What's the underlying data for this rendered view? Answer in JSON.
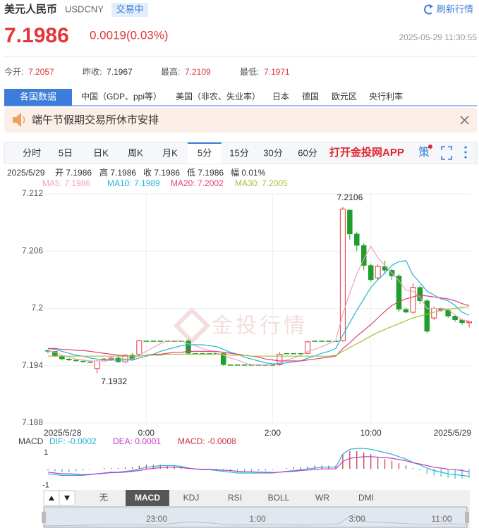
{
  "header": {
    "name": "美元人民币",
    "code": "USDCNY",
    "status": "交易中",
    "refresh": "刷新行情",
    "price": "7.1986",
    "change": "0.0019(0.03%)",
    "time": "2025-05-29 11:30:55"
  },
  "stats": [
    {
      "label": "今开:",
      "value": "7.2057"
    },
    {
      "label": "昨收:",
      "value": "7.1967"
    },
    {
      "label": "最高:",
      "value": "7.2109"
    },
    {
      "label": "最低:",
      "value": "7.1971"
    }
  ],
  "tabs": [
    "各国数据",
    "中国（GDP、ppi等）",
    "美国（非农、失业率）",
    "日本",
    "德国",
    "欧元区",
    "央行利率"
  ],
  "notice": "端午节假期交易所休市安排",
  "periods": [
    "分时",
    "5日",
    "日K",
    "周K",
    "月K",
    "5分",
    "15分",
    "30分",
    "60分"
  ],
  "app_link": "打开金投网APP",
  "strategy": "策",
  "info": [
    "2025/5/29",
    "开 7.1986",
    "高 7.1986",
    "收 7.1986",
    "低 7.1986",
    "幅 0.01%"
  ],
  "watermark": "金投行情",
  "chart_data": [
    {
      "type": "candlestick",
      "up_color": "#e2363a",
      "down_color": "#1e9e2a",
      "ylim": [
        7.188,
        7.212
      ],
      "yticks": [
        7.212,
        7.206,
        7.2,
        7.194,
        7.188
      ],
      "high_label": "7.2106",
      "low_label": "7.1932",
      "categories": [
        "2025/5/28",
        null,
        null,
        null,
        null,
        null,
        null,
        null,
        null,
        null,
        null,
        null,
        null,
        null,
        "0:00",
        null,
        null,
        null,
        null,
        null,
        null,
        null,
        null,
        null,
        null,
        null,
        null,
        null,
        null,
        null,
        null,
        null,
        "2:00",
        null,
        null,
        null,
        null,
        null,
        null,
        null,
        null,
        null,
        null,
        null,
        null,
        null,
        "10:00",
        null,
        null,
        null,
        null,
        null,
        null,
        null,
        null,
        null,
        null,
        null,
        null,
        null,
        "2025/5/29"
      ],
      "open": [
        7.1956,
        7.1955,
        7.195,
        7.1947,
        7.1946,
        7.1945,
        7.1944,
        7.1937,
        7.1945,
        7.1947,
        7.1948,
        7.1944,
        7.1951,
        7.1952,
        7.1966,
        7.1966,
        7.1966,
        7.1966,
        7.1966,
        7.1966,
        7.1966,
        7.1953,
        7.1953,
        7.1953,
        7.1953,
        7.1953,
        7.1941,
        7.1941,
        7.1941,
        7.1941,
        7.1941,
        7.1941,
        7.1941,
        7.1941,
        7.1953,
        7.1953,
        7.1953,
        7.1953,
        7.1966,
        7.1966,
        7.1966,
        7.1966,
        7.1966,
        7.2103,
        7.2078,
        7.2066,
        7.2045,
        7.2032,
        7.2044,
        7.204,
        7.2034,
        7.1999,
        7.1996,
        7.2022,
        7.2008,
        7.199,
        7.2,
        7.1998,
        7.1992,
        7.1988,
        7.1985
      ],
      "high": [
        7.1957,
        7.1955,
        7.1951,
        7.1948,
        7.1946,
        7.1945,
        7.1945,
        7.1946,
        7.1948,
        7.1949,
        7.195,
        7.1952,
        7.1953,
        7.1967,
        7.1966,
        7.1966,
        7.1966,
        7.1966,
        7.1966,
        7.1966,
        7.1968,
        7.1953,
        7.1953,
        7.1953,
        7.1953,
        7.1954,
        7.1941,
        7.1941,
        7.1941,
        7.1941,
        7.1941,
        7.1941,
        7.1942,
        7.1954,
        7.1953,
        7.1953,
        7.1953,
        7.1966,
        7.1966,
        7.1966,
        7.1966,
        7.1966,
        7.2106,
        7.2104,
        7.208,
        7.2068,
        7.2047,
        7.2046,
        7.205,
        7.2042,
        7.2036,
        7.2001,
        7.2026,
        7.2024,
        7.201,
        7.2002,
        7.2001,
        7.2,
        7.1993,
        7.1989,
        7.1986
      ],
      "low": [
        7.1953,
        7.1949,
        7.1946,
        7.1945,
        7.1944,
        7.1943,
        7.1943,
        7.1932,
        7.1944,
        7.1945,
        7.1943,
        7.1943,
        7.1945,
        7.195,
        7.1966,
        7.1966,
        7.1966,
        7.1966,
        7.1966,
        7.1966,
        7.1952,
        7.1953,
        7.1953,
        7.1953,
        7.1953,
        7.194,
        7.1941,
        7.1941,
        7.1941,
        7.1941,
        7.1941,
        7.1941,
        7.194,
        7.194,
        7.1953,
        7.1953,
        7.1953,
        7.1952,
        7.1966,
        7.1966,
        7.1966,
        7.1966,
        7.1965,
        7.2072,
        7.206,
        7.204,
        7.2028,
        7.203,
        7.2036,
        7.203,
        7.1996,
        7.1995,
        7.1994,
        7.2005,
        7.1974,
        7.1988,
        7.1996,
        7.199,
        7.1986,
        7.1983,
        7.198
      ],
      "close": [
        7.1955,
        7.195,
        7.1947,
        7.1946,
        7.1945,
        7.1944,
        7.1944,
        7.1945,
        7.1947,
        7.1948,
        7.1944,
        7.1951,
        7.1946,
        7.1966,
        7.1966,
        7.1966,
        7.1966,
        7.1966,
        7.1966,
        7.1966,
        7.1953,
        7.1953,
        7.1953,
        7.1953,
        7.1953,
        7.1941,
        7.1941,
        7.1941,
        7.1941,
        7.1941,
        7.1941,
        7.1941,
        7.1941,
        7.1952,
        7.1953,
        7.1953,
        7.1953,
        7.1965,
        7.1966,
        7.1966,
        7.1966,
        7.1966,
        7.2104,
        7.2078,
        7.2066,
        7.2045,
        7.203,
        7.2044,
        7.204,
        7.2034,
        7.1999,
        7.1996,
        7.2022,
        7.2008,
        7.1976,
        7.2,
        7.1998,
        7.1992,
        7.1988,
        7.1985,
        7.1986
      ],
      "series": [
        {
          "name": "MA5: 7.1986",
          "color": "#f2a2bb",
          "values": [
            7.1956,
            7.1954,
            7.1951,
            7.1949,
            7.1947,
            7.1946,
            7.1945,
            7.1945,
            7.1945,
            7.1946,
            7.1946,
            7.1947,
            7.1947,
            7.1951,
            7.1955,
            7.1959,
            7.1963,
            7.1966,
            7.1966,
            7.1966,
            7.1963,
            7.1961,
            7.1958,
            7.1956,
            7.1953,
            7.1951,
            7.1948,
            7.1946,
            7.1943,
            7.1941,
            7.1941,
            7.1941,
            7.1941,
            7.1943,
            7.1946,
            7.1948,
            7.1951,
            7.1955,
            7.1957,
            7.196,
            7.1963,
            7.1966,
            7.1994,
            7.2016,
            7.2036,
            7.2052,
            7.2065,
            7.2053,
            7.2045,
            7.2037,
            7.2029,
            7.2019,
            7.2018,
            7.2012,
            7.2,
            7.2,
            7.2,
            7.1999,
            7.1993,
            7.1988,
            7.1987
          ]
        },
        {
          "name": "MA10: 7.1989",
          "color": "#25b3d6",
          "values": [
            7.1958,
            7.1957,
            7.1955,
            7.1953,
            7.1951,
            7.195,
            7.1948,
            7.1947,
            7.1946,
            7.1946,
            7.1946,
            7.1946,
            7.1946,
            7.1948,
            7.195,
            7.1952,
            7.1955,
            7.1957,
            7.1959,
            7.1961,
            7.1962,
            7.1962,
            7.1962,
            7.1961,
            7.196,
            7.1957,
            7.1954,
            7.1952,
            7.1949,
            7.1947,
            7.1945,
            7.1943,
            7.1942,
            7.1942,
            7.1943,
            7.1944,
            7.1945,
            7.1948,
            7.195,
            7.1953,
            7.1955,
            7.1958,
            7.1972,
            7.1985,
            7.1998,
            7.201,
            7.2022,
            7.203,
            7.2037,
            7.2045,
            7.2049,
            7.205,
            7.2035,
            7.2027,
            7.2018,
            7.2014,
            7.201,
            7.2008,
            7.2003,
            7.1996,
            7.1993
          ]
        },
        {
          "name": "MA20: 7.2002",
          "color": "#e0407c",
          "values": [
            7.1958,
            7.1958,
            7.1957,
            7.1957,
            7.1956,
            7.1956,
            7.1955,
            7.1954,
            7.1953,
            7.1952,
            7.1951,
            7.195,
            7.195,
            7.195,
            7.1951,
            7.1952,
            7.1952,
            7.1953,
            7.1954,
            7.1954,
            7.1955,
            7.1955,
            7.1955,
            7.1955,
            7.1955,
            7.1954,
            7.1953,
            7.1952,
            7.1951,
            7.195,
            7.1949,
            7.1947,
            7.1946,
            7.1945,
            7.1945,
            7.1945,
            7.1945,
            7.1946,
            7.1947,
            7.1948,
            7.1949,
            7.195,
            7.1958,
            7.1964,
            7.1971,
            7.1977,
            7.1983,
            7.199,
            7.1997,
            7.2003,
            7.2007,
            7.201,
            7.2012,
            7.2014,
            7.2013,
            7.2012,
            7.2011,
            7.201,
            7.2008,
            7.2005,
            7.2003
          ]
        },
        {
          "name": "MA30: 7.2005",
          "color": "#a3bf38",
          "values": [
            7.195,
            7.195,
            7.195,
            7.195,
            7.195,
            7.195,
            7.195,
            7.195,
            7.195,
            7.195,
            7.195,
            7.195,
            7.195,
            7.195,
            7.1951,
            7.1951,
            7.1951,
            7.1952,
            7.1952,
            7.1952,
            7.1952,
            7.1952,
            7.1952,
            7.1952,
            7.1952,
            7.1952,
            7.1951,
            7.1951,
            7.1951,
            7.195,
            7.195,
            7.195,
            7.195,
            7.195,
            7.195,
            7.195,
            7.195,
            7.195,
            7.195,
            7.195,
            7.195,
            7.1951,
            7.1955,
            7.1959,
            7.1963,
            7.1967,
            7.1971,
            7.1975,
            7.1978,
            7.1981,
            7.1984,
            7.1987,
            7.199,
            7.1992,
            7.1994,
            7.1996,
            7.1998,
            7.1999,
            7.2,
            7.2001,
            7.2002
          ]
        }
      ]
    },
    {
      "type": "macd",
      "title": "MACD",
      "ylim": [
        -1.2,
        1.3
      ],
      "yticks": [
        1,
        -1
      ],
      "series": [
        {
          "name": "DIF: -0.0002",
          "color": "#25b3d6",
          "values": [
            -0.3,
            -0.35,
            -0.4,
            -0.4,
            -0.4,
            -0.4,
            -0.35,
            -0.3,
            -0.25,
            -0.2,
            -0.2,
            -0.15,
            -0.1,
            0,
            0.1,
            0.15,
            0.2,
            0.2,
            0.2,
            0.15,
            0.05,
            0,
            -0.05,
            -0.05,
            -0.1,
            -0.15,
            -0.2,
            -0.25,
            -0.25,
            -0.25,
            -0.25,
            -0.25,
            -0.25,
            -0.2,
            -0.15,
            -0.1,
            -0.05,
            0,
            0.05,
            0.1,
            0.1,
            0.1,
            0.9,
            1.2,
            1.25,
            1.25,
            1.2,
            1.1,
            1.0,
            0.9,
            0.75,
            0.6,
            0.4,
            0.25,
            0.05,
            -0.1,
            -0.2,
            -0.3,
            -0.35,
            -0.4,
            -0.45
          ]
        },
        {
          "name": "DEA: 0.0001",
          "color": "#c23cc4",
          "values": [
            -0.2,
            -0.25,
            -0.3,
            -0.3,
            -0.32,
            -0.35,
            -0.33,
            -0.3,
            -0.27,
            -0.23,
            -0.22,
            -0.2,
            -0.15,
            -0.1,
            -0.02,
            0.03,
            0.08,
            0.1,
            0.1,
            0.08,
            0.03,
            0,
            -0.02,
            -0.03,
            -0.05,
            -0.08,
            -0.1,
            -0.15,
            -0.17,
            -0.18,
            -0.2,
            -0.2,
            -0.22,
            -0.2,
            -0.17,
            -0.15,
            -0.1,
            -0.07,
            -0.05,
            0,
            0,
            0,
            0.45,
            0.65,
            0.7,
            0.75,
            0.75,
            0.72,
            0.7,
            0.65,
            0.57,
            0.5,
            0.37,
            0.3,
            0.2,
            0.1,
            0.05,
            -0.02,
            -0.05,
            -0.1,
            -0.18
          ]
        },
        {
          "name": "MACD: -0.0008",
          "color": "#c8323c",
          "negative_color": "#2fbfc9",
          "values": [
            -0.1,
            -0.15,
            -0.2,
            -0.2,
            -0.15,
            -0.1,
            -0.05,
            0,
            0.05,
            0.05,
            0.05,
            0.1,
            0.1,
            0.2,
            0.25,
            0.25,
            0.25,
            0.2,
            0.2,
            0.15,
            0.05,
            0,
            -0.05,
            -0.05,
            -0.1,
            -0.15,
            -0.2,
            -0.2,
            -0.15,
            -0.15,
            -0.1,
            -0.1,
            -0.05,
            0,
            0.05,
            0.1,
            0.1,
            0.15,
            0.2,
            0.2,
            0.2,
            0.2,
            0.9,
            1.1,
            1.1,
            1.0,
            0.9,
            0.75,
            0.6,
            0.5,
            0.35,
            0.2,
            0.05,
            -0.1,
            -0.3,
            -0.4,
            -0.5,
            -0.55,
            -0.6,
            -0.6,
            -0.55
          ]
        }
      ]
    }
  ],
  "indicators": [
    "无",
    "MACD",
    "KDJ",
    "RSI",
    "BOLL",
    "WR",
    "DMI"
  ],
  "navigator_times": [
    "23:00",
    "1:00",
    "3:00",
    "11:00"
  ]
}
